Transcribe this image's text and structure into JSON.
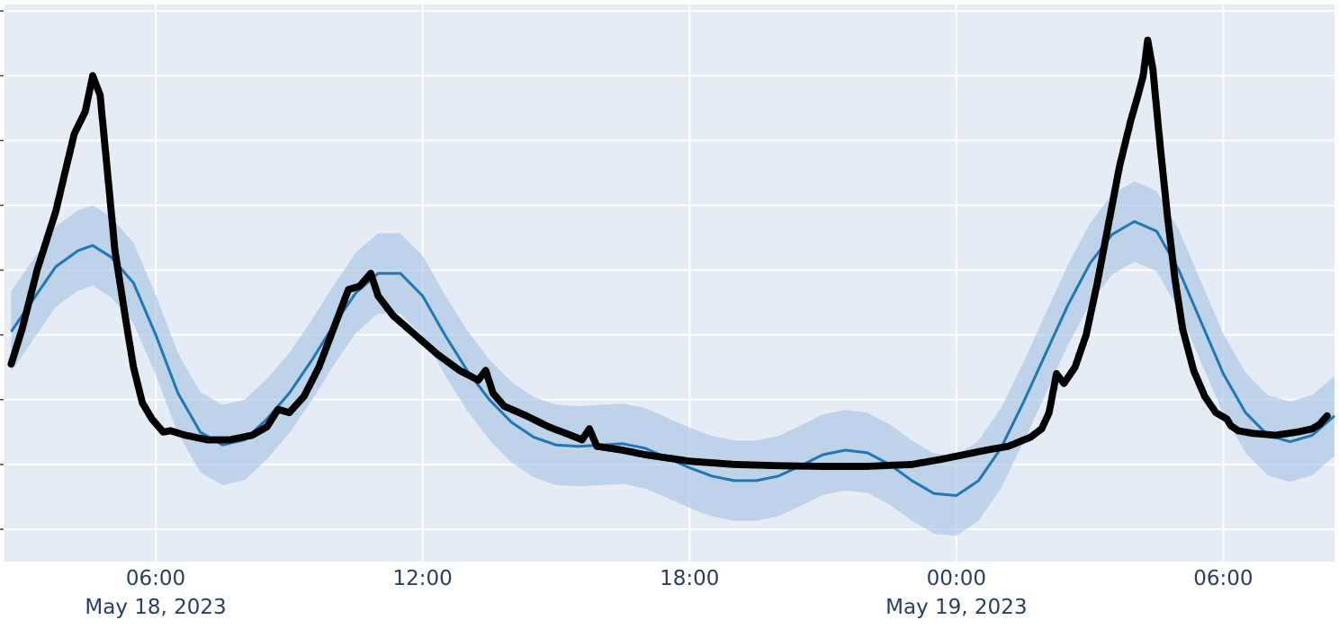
{
  "chart_data": {
    "type": "line",
    "title": "",
    "xlabel": "",
    "ylabel": "",
    "xlim": [
      "2023-05-18T02:36",
      "2023-05-19T08:30"
    ],
    "ylim": [
      0,
      8.6
    ],
    "x_ticks": [
      {
        "t": "2023-05-18T06:00",
        "label": "06:00",
        "sublabel": "May 18, 2023"
      },
      {
        "t": "2023-05-18T12:00",
        "label": "12:00",
        "sublabel": ""
      },
      {
        "t": "2023-05-18T18:00",
        "label": "18:00",
        "sublabel": ""
      },
      {
        "t": "2023-05-19T00:00",
        "label": "00:00",
        "sublabel": "May 19, 2023"
      },
      {
        "t": "2023-05-19T06:00",
        "label": "06:00",
        "sublabel": ""
      }
    ],
    "y_gridlines": [
      0.5,
      1.5,
      2.5,
      3.5,
      4.5,
      5.5,
      6.5,
      7.5,
      8.5
    ],
    "grid": true,
    "legend": "none",
    "colors": {
      "plot_bg": "#e5ecf6",
      "grid": "#ffffff",
      "observed": "#000000",
      "forecast": "#1f77b4",
      "band": "#a6c4e2",
      "tick_text": "#2a3f5f"
    },
    "series": [
      {
        "kind": "observed",
        "points": [
          [
            "2023-05-18T02:45",
            3.05
          ],
          [
            "2023-05-18T03:00",
            3.6
          ],
          [
            "2023-05-18T03:20",
            4.5
          ],
          [
            "2023-05-18T03:45",
            5.4
          ],
          [
            "2023-05-18T04:10",
            6.6
          ],
          [
            "2023-05-18T04:25",
            6.95
          ],
          [
            "2023-05-18T04:35",
            7.5
          ],
          [
            "2023-05-18T04:45",
            7.2
          ],
          [
            "2023-05-18T04:55",
            6.0
          ],
          [
            "2023-05-18T05:05",
            4.8
          ],
          [
            "2023-05-18T05:20",
            3.7
          ],
          [
            "2023-05-18T05:30",
            3.0
          ],
          [
            "2023-05-18T05:42",
            2.45
          ],
          [
            "2023-05-18T05:55",
            2.2
          ],
          [
            "2023-05-18T06:10",
            2.0
          ],
          [
            "2023-05-18T06:20",
            2.02
          ],
          [
            "2023-05-18T06:40",
            1.95
          ],
          [
            "2023-05-18T07:10",
            1.88
          ],
          [
            "2023-05-18T07:40",
            1.88
          ],
          [
            "2023-05-18T08:10",
            1.95
          ],
          [
            "2023-05-18T08:30",
            2.08
          ],
          [
            "2023-05-18T08:45",
            2.35
          ],
          [
            "2023-05-18T09:00",
            2.3
          ],
          [
            "2023-05-18T09:20",
            2.55
          ],
          [
            "2023-05-18T09:40",
            3.0
          ],
          [
            "2023-05-18T10:00",
            3.6
          ],
          [
            "2023-05-18T10:20",
            4.2
          ],
          [
            "2023-05-18T10:35",
            4.25
          ],
          [
            "2023-05-18T10:50",
            4.45
          ],
          [
            "2023-05-18T11:00",
            4.1
          ],
          [
            "2023-05-18T11:20",
            3.8
          ],
          [
            "2023-05-18T11:50",
            3.5
          ],
          [
            "2023-05-18T12:20",
            3.2
          ],
          [
            "2023-05-18T12:50",
            2.95
          ],
          [
            "2023-05-18T13:15",
            2.8
          ],
          [
            "2023-05-18T13:25",
            2.95
          ],
          [
            "2023-05-18T13:35",
            2.6
          ],
          [
            "2023-05-18T13:50",
            2.4
          ],
          [
            "2023-05-18T14:20",
            2.25
          ],
          [
            "2023-05-18T14:50",
            2.08
          ],
          [
            "2023-05-18T15:20",
            1.95
          ],
          [
            "2023-05-18T15:35",
            1.88
          ],
          [
            "2023-05-18T15:45",
            2.05
          ],
          [
            "2023-05-18T15:55",
            1.78
          ],
          [
            "2023-05-18T16:30",
            1.72
          ],
          [
            "2023-05-18T17:00",
            1.65
          ],
          [
            "2023-05-18T17:30",
            1.6
          ],
          [
            "2023-05-18T18:00",
            1.55
          ],
          [
            "2023-05-18T19:00",
            1.5
          ],
          [
            "2023-05-18T20:00",
            1.48
          ],
          [
            "2023-05-18T21:00",
            1.47
          ],
          [
            "2023-05-18T22:00",
            1.47
          ],
          [
            "2023-05-18T23:00",
            1.5
          ],
          [
            "2023-05-18T23:40",
            1.58
          ],
          [
            "2023-05-19T00:10",
            1.65
          ],
          [
            "2023-05-19T00:40",
            1.72
          ],
          [
            "2023-05-19T01:10",
            1.78
          ],
          [
            "2023-05-19T01:40",
            1.92
          ],
          [
            "2023-05-19T01:55",
            2.05
          ],
          [
            "2023-05-19T02:05",
            2.3
          ],
          [
            "2023-05-19T02:15",
            2.9
          ],
          [
            "2023-05-19T02:25",
            2.75
          ],
          [
            "2023-05-19T02:40",
            3.0
          ],
          [
            "2023-05-19T02:55",
            3.5
          ],
          [
            "2023-05-19T03:10",
            4.3
          ],
          [
            "2023-05-19T03:25",
            5.2
          ],
          [
            "2023-05-19T03:40",
            6.1
          ],
          [
            "2023-05-19T03:55",
            6.8
          ],
          [
            "2023-05-19T04:05",
            7.2
          ],
          [
            "2023-05-19T04:12",
            7.5
          ],
          [
            "2023-05-19T04:18",
            8.05
          ],
          [
            "2023-05-19T04:25",
            7.6
          ],
          [
            "2023-05-19T04:35",
            6.4
          ],
          [
            "2023-05-19T04:45",
            5.3
          ],
          [
            "2023-05-19T04:55",
            4.35
          ],
          [
            "2023-05-19T05:05",
            3.6
          ],
          [
            "2023-05-19T05:20",
            2.95
          ],
          [
            "2023-05-19T05:35",
            2.55
          ],
          [
            "2023-05-19T05:50",
            2.3
          ],
          [
            "2023-05-19T06:05",
            2.2
          ],
          [
            "2023-05-19T06:10",
            2.1
          ],
          [
            "2023-05-19T06:20",
            2.02
          ],
          [
            "2023-05-19T06:40",
            1.98
          ],
          [
            "2023-05-19T07:10",
            1.95
          ],
          [
            "2023-05-19T07:40",
            2.0
          ],
          [
            "2023-05-19T08:00",
            2.05
          ],
          [
            "2023-05-19T08:10",
            2.12
          ],
          [
            "2023-05-19T08:20",
            2.25
          ]
        ]
      },
      {
        "kind": "forecast",
        "points": [
          [
            "2023-05-18T02:45",
            3.55
          ],
          [
            "2023-05-18T03:15",
            4.05
          ],
          [
            "2023-05-18T03:45",
            4.55
          ],
          [
            "2023-05-18T04:15",
            4.8
          ],
          [
            "2023-05-18T04:35",
            4.88
          ],
          [
            "2023-05-18T05:00",
            4.7
          ],
          [
            "2023-05-18T05:30",
            4.3
          ],
          [
            "2023-05-18T06:00",
            3.5
          ],
          [
            "2023-05-18T06:30",
            2.6
          ],
          [
            "2023-05-18T07:00",
            2.0
          ],
          [
            "2023-05-18T07:30",
            1.8
          ],
          [
            "2023-05-18T08:00",
            1.88
          ],
          [
            "2023-05-18T08:30",
            2.2
          ],
          [
            "2023-05-18T09:00",
            2.6
          ],
          [
            "2023-05-18T09:30",
            3.1
          ],
          [
            "2023-05-18T10:00",
            3.65
          ],
          [
            "2023-05-18T10:30",
            4.15
          ],
          [
            "2023-05-18T11:00",
            4.45
          ],
          [
            "2023-05-18T11:30",
            4.45
          ],
          [
            "2023-05-18T12:00",
            4.1
          ],
          [
            "2023-05-18T12:30",
            3.5
          ],
          [
            "2023-05-18T13:00",
            2.95
          ],
          [
            "2023-05-18T13:30",
            2.5
          ],
          [
            "2023-05-18T14:00",
            2.15
          ],
          [
            "2023-05-18T14:30",
            1.92
          ],
          [
            "2023-05-18T15:00",
            1.8
          ],
          [
            "2023-05-18T15:30",
            1.78
          ],
          [
            "2023-05-18T16:00",
            1.8
          ],
          [
            "2023-05-18T16:30",
            1.82
          ],
          [
            "2023-05-18T17:00",
            1.75
          ],
          [
            "2023-05-18T17:30",
            1.6
          ],
          [
            "2023-05-18T18:00",
            1.45
          ],
          [
            "2023-05-18T18:30",
            1.32
          ],
          [
            "2023-05-18T19:00",
            1.25
          ],
          [
            "2023-05-18T19:30",
            1.25
          ],
          [
            "2023-05-18T20:00",
            1.32
          ],
          [
            "2023-05-18T20:30",
            1.48
          ],
          [
            "2023-05-18T21:00",
            1.65
          ],
          [
            "2023-05-18T21:30",
            1.72
          ],
          [
            "2023-05-18T22:00",
            1.68
          ],
          [
            "2023-05-18T22:30",
            1.5
          ],
          [
            "2023-05-18T23:00",
            1.25
          ],
          [
            "2023-05-18T23:30",
            1.05
          ],
          [
            "2023-05-19T00:00",
            1.02
          ],
          [
            "2023-05-19T00:30",
            1.25
          ],
          [
            "2023-05-19T01:00",
            1.75
          ],
          [
            "2023-05-19T01:30",
            2.45
          ],
          [
            "2023-05-19T02:00",
            3.2
          ],
          [
            "2023-05-19T02:30",
            3.95
          ],
          [
            "2023-05-19T03:00",
            4.6
          ],
          [
            "2023-05-19T03:30",
            5.05
          ],
          [
            "2023-05-19T04:00",
            5.25
          ],
          [
            "2023-05-19T04:30",
            5.1
          ],
          [
            "2023-05-19T05:00",
            4.5
          ],
          [
            "2023-05-19T05:30",
            3.7
          ],
          [
            "2023-05-19T06:00",
            2.9
          ],
          [
            "2023-05-19T06:30",
            2.3
          ],
          [
            "2023-05-19T07:00",
            1.95
          ],
          [
            "2023-05-19T07:30",
            1.85
          ],
          [
            "2023-05-19T08:00",
            1.95
          ],
          [
            "2023-05-19T08:30",
            2.25
          ]
        ],
        "band_halfwidth": 0.62
      }
    ]
  }
}
